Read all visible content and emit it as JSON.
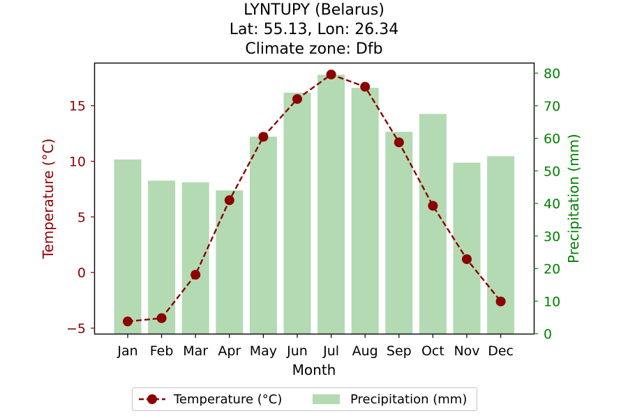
{
  "chart_data": {
    "type": "bar+line",
    "title": [
      "LYNTUPY (Belarus)",
      "Lat: 55.13, Lon: 26.34",
      "Climate zone: Dfb"
    ],
    "xlabel": "Month",
    "ylabel_left": "Temperature (°C)",
    "ylabel_right": "Precipitation (mm)",
    "categories": [
      "Jan",
      "Feb",
      "Mar",
      "Apr",
      "May",
      "Jun",
      "Jul",
      "Aug",
      "Sep",
      "Oct",
      "Nov",
      "Dec"
    ],
    "y_left": {
      "lim": [
        -5.5,
        18.8
      ],
      "ticks": [
        -5,
        0,
        5,
        10,
        15
      ]
    },
    "y_right": {
      "lim": [
        0,
        83
      ],
      "ticks": [
        0,
        10,
        20,
        30,
        40,
        50,
        60,
        70,
        80
      ]
    },
    "series": [
      {
        "name": "Temperature (°C)",
        "kind": "line",
        "axis": "left",
        "color": "#8b0000",
        "values": [
          -4.4,
          -4.1,
          -0.2,
          6.5,
          12.2,
          15.6,
          17.8,
          16.7,
          11.7,
          6.0,
          1.2,
          -2.6
        ]
      },
      {
        "name": "Precipitation (mm)",
        "kind": "bar",
        "axis": "right",
        "color": "#b3dab3",
        "values": [
          53.5,
          47.0,
          46.5,
          44.0,
          60.5,
          74.0,
          79.5,
          75.5,
          62.0,
          67.5,
          52.5,
          54.5
        ]
      }
    ],
    "colors": {
      "left_axis": "#8b0000",
      "right_axis": "#008000"
    },
    "legend": {
      "position": "bottom-center",
      "entries": [
        "Temperature (°C)",
        "Precipitation (mm)"
      ]
    },
    "grid": false
  }
}
